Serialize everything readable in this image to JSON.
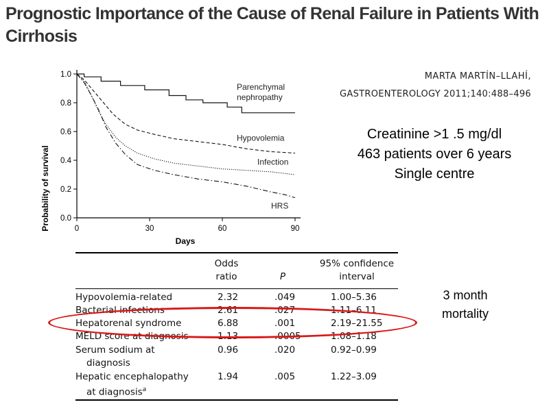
{
  "slide": {
    "title": "Prognostic Importance of the Cause of Renal Failure in Patients With Cirrhosis",
    "citation_author": "MARTA MARTÍN–LLAHÍ,",
    "citation_journal": "GASTROENTEROLOGY 2011;140:488–496",
    "info_lines": [
      "Creatinine >1 .5 mg/dl",
      "463 patients over 6 years",
      "Single centre"
    ],
    "note_lines": [
      "3 month",
      "mortality"
    ]
  },
  "chart_data": {
    "type": "line",
    "xlabel": "Days",
    "ylabel": "Probability of survival",
    "xlim": [
      0,
      90
    ],
    "ylim": [
      0,
      1.0
    ],
    "x_ticks": [
      0,
      30,
      60,
      90
    ],
    "y_ticks": [
      "0.0",
      "0.2",
      "0.4",
      "0.6",
      "0.8",
      "1.0"
    ],
    "series": [
      {
        "name": "Parenchymal nephropathy",
        "label_lines": [
          "Parenchymal",
          "nephropathy"
        ],
        "style": "solid",
        "points": [
          [
            0,
            1.0
          ],
          [
            3,
            1.0
          ],
          [
            3,
            0.98
          ],
          [
            10,
            0.98
          ],
          [
            10,
            0.95
          ],
          [
            18,
            0.95
          ],
          [
            18,
            0.92
          ],
          [
            28,
            0.92
          ],
          [
            28,
            0.89
          ],
          [
            38,
            0.89
          ],
          [
            38,
            0.85
          ],
          [
            45,
            0.85
          ],
          [
            45,
            0.82
          ],
          [
            52,
            0.82
          ],
          [
            52,
            0.8
          ],
          [
            62,
            0.8
          ],
          [
            62,
            0.77
          ],
          [
            68,
            0.77
          ],
          [
            68,
            0.73
          ],
          [
            90,
            0.73
          ]
        ]
      },
      {
        "name": "Hypovolemia",
        "label_lines": [
          "Hypovolemia"
        ],
        "style": "dashed",
        "points": [
          [
            0,
            1.0
          ],
          [
            3,
            0.96
          ],
          [
            6,
            0.9
          ],
          [
            9,
            0.84
          ],
          [
            12,
            0.78
          ],
          [
            15,
            0.72
          ],
          [
            20,
            0.65
          ],
          [
            25,
            0.61
          ],
          [
            32,
            0.58
          ],
          [
            40,
            0.55
          ],
          [
            50,
            0.53
          ],
          [
            60,
            0.51
          ],
          [
            70,
            0.48
          ],
          [
            80,
            0.46
          ],
          [
            90,
            0.45
          ]
        ]
      },
      {
        "name": "Infection",
        "label_lines": [
          "Infection"
        ],
        "style": "dotted",
        "points": [
          [
            0,
            1.0
          ],
          [
            3,
            0.95
          ],
          [
            6,
            0.85
          ],
          [
            9,
            0.74
          ],
          [
            12,
            0.65
          ],
          [
            16,
            0.56
          ],
          [
            20,
            0.5
          ],
          [
            25,
            0.45
          ],
          [
            32,
            0.41
          ],
          [
            40,
            0.38
          ],
          [
            50,
            0.36
          ],
          [
            60,
            0.34
          ],
          [
            70,
            0.33
          ],
          [
            80,
            0.32
          ],
          [
            90,
            0.3
          ]
        ]
      },
      {
        "name": "HRS",
        "label_lines": [
          "HRS"
        ],
        "style": "dashdot",
        "points": [
          [
            0,
            1.0
          ],
          [
            3,
            0.94
          ],
          [
            6,
            0.85
          ],
          [
            9,
            0.75
          ],
          [
            12,
            0.63
          ],
          [
            16,
            0.52
          ],
          [
            20,
            0.44
          ],
          [
            25,
            0.37
          ],
          [
            32,
            0.33
          ],
          [
            40,
            0.3
          ],
          [
            50,
            0.27
          ],
          [
            60,
            0.25
          ],
          [
            70,
            0.22
          ],
          [
            80,
            0.18
          ],
          [
            86,
            0.16
          ],
          [
            90,
            0.14
          ]
        ]
      }
    ]
  },
  "table": {
    "headers": {
      "factor": "",
      "odds": [
        "Odds",
        "ratio"
      ],
      "p": "P",
      "ci": [
        "95% confidence",
        "interval"
      ]
    },
    "rows": [
      {
        "factor": [
          "Hypovolemia-related"
        ],
        "odds": "2.32",
        "p": ".049",
        "ci": "1.00–5.36"
      },
      {
        "factor": [
          "Bacterial infections"
        ],
        "odds": "2.61",
        "p": ".027",
        "ci": "1.11–6.11"
      },
      {
        "factor": [
          "Hepatorenal syndrome"
        ],
        "odds": "6.88",
        "p": ".001",
        "ci": "2.19–21.55"
      },
      {
        "factor": [
          "MELD score at diagnosis"
        ],
        "odds": "1.13",
        "p": ".0005",
        "ci": "1.08–1.18"
      },
      {
        "factor": [
          "Serum sodium at",
          "diagnosis"
        ],
        "odds": "0.96",
        "p": ".020",
        "ci": "0.92–0.99"
      },
      {
        "factor": [
          "Hepatic encephalopathy",
          "at diagnosis"
        ],
        "factor_sup": "a",
        "odds": "1.94",
        "p": ".005",
        "ci": "1.22–3.09"
      }
    ]
  }
}
